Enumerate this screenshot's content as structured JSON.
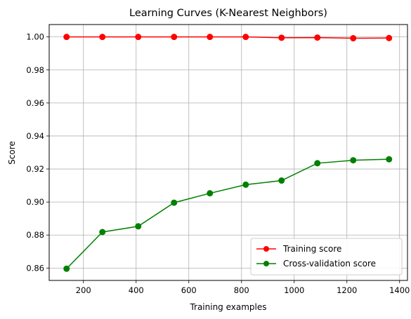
{
  "chart_data": {
    "type": "line",
    "title": "Learning Curves (K-Nearest Neighbors)",
    "xlabel": "Training examples",
    "ylabel": "Score",
    "xlim": [
      70,
      1430
    ],
    "ylim": [
      0.8525,
      1.0075
    ],
    "xticks": [
      200,
      400,
      600,
      800,
      1000,
      1200,
      1400
    ],
    "yticks": [
      0.86,
      0.88,
      0.9,
      0.92,
      0.94,
      0.96,
      0.98,
      1.0
    ],
    "ytick_labels": [
      "0.86",
      "0.88",
      "0.90",
      "0.92",
      "0.94",
      "0.96",
      "0.98",
      "1.00"
    ],
    "grid": true,
    "legend_position": "lower-right",
    "x": [
      136,
      272,
      408,
      544,
      680,
      816,
      952,
      1088,
      1224,
      1360
    ],
    "series": [
      {
        "name": "Training score",
        "color": "#ff0000",
        "marker": "circle",
        "values": [
          1.0,
          1.0,
          1.0,
          1.0,
          1.0,
          1.0,
          0.9995,
          0.9996,
          0.9992,
          0.9993
        ]
      },
      {
        "name": "Cross-validation score",
        "color": "#008000",
        "marker": "circle",
        "values": [
          0.8596,
          0.8818,
          0.8853,
          0.8996,
          0.9053,
          0.9105,
          0.913,
          0.9235,
          0.9253,
          0.9259
        ]
      }
    ]
  }
}
